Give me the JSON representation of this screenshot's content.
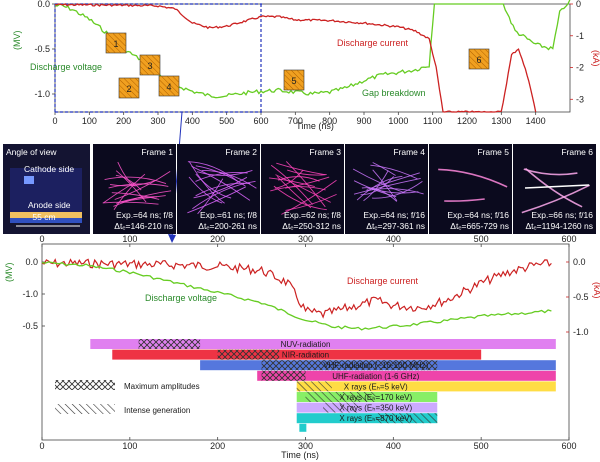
{
  "chart_data": [
    {
      "type": "line",
      "title": "",
      "xlabel": "Time (ns)",
      "ylabel_left": "(MV)",
      "ylabel_right": "(kA)",
      "xlim": [
        0,
        1500
      ],
      "ylim_left": [
        -1.2,
        0.0
      ],
      "ylim_right": [
        -3.4,
        0.0
      ],
      "x_ticks": [
        0,
        100,
        200,
        300,
        400,
        500,
        600,
        700,
        800,
        900,
        1000,
        1100,
        1200,
        1300,
        1400
      ],
      "y_ticks_left": [
        "0.0",
        "-0.5",
        "-1.0"
      ],
      "y_ticks_right": [
        "0",
        "-1",
        "-2",
        "-3"
      ],
      "series": [
        {
          "name": "Discharge voltage",
          "color": "#66cc22",
          "axis": "left",
          "x": [
            0,
            20,
            50,
            100,
            150,
            200,
            250,
            300,
            350,
            400,
            450,
            500,
            550,
            600,
            650,
            700,
            750,
            800,
            850,
            900,
            950,
            1000,
            1050,
            1090,
            1100,
            1105,
            1200,
            1300,
            1340,
            1400,
            1450,
            1470,
            1500
          ],
          "values": [
            -0.02,
            -0.02,
            -0.06,
            -0.17,
            -0.32,
            -0.5,
            -0.62,
            -0.78,
            -0.9,
            -0.97,
            -1.02,
            -1.02,
            -0.99,
            -0.97,
            -0.96,
            -0.98,
            -1.0,
            -0.98,
            -0.93,
            -0.85,
            -0.79,
            -0.76,
            -0.73,
            -0.68,
            -0.2,
            0.05,
            0.05,
            0.05,
            -0.3,
            -0.45,
            -0.5,
            -0.1,
            0.05
          ]
        },
        {
          "name": "Discharge current",
          "color": "#cc2222",
          "axis": "right",
          "x": [
            0,
            100,
            200,
            300,
            350,
            400,
            450,
            500,
            550,
            600,
            650,
            700,
            800,
            900,
            1000,
            1050,
            1090,
            1110,
            1130,
            1300,
            1330,
            1350,
            1380,
            1400
          ],
          "values": [
            -0.02,
            -0.03,
            -0.04,
            -0.06,
            -0.15,
            -0.6,
            -0.75,
            -0.7,
            -0.55,
            -0.4,
            -0.4,
            -0.5,
            -0.52,
            -0.6,
            -0.72,
            -0.85,
            -1.1,
            -2.0,
            -3.4,
            -3.4,
            -1.6,
            -1.4,
            -2.4,
            -3.4
          ]
        }
      ],
      "annotations": [
        "Discharge voltage",
        "Discharge current",
        "Gap breakdown"
      ],
      "markers": [
        "1",
        "2",
        "3",
        "4",
        "5",
        "6"
      ]
    },
    {
      "type": "line",
      "xlabel": "Time (ns)",
      "ylabel_left": "(MV)",
      "ylabel_right": "(kA)",
      "xlim": [
        0,
        600
      ],
      "x_ticks": [
        0,
        100,
        200,
        300,
        400,
        500,
        600
      ],
      "y_ticks_left": [
        "0.0",
        "-0.5",
        "-1.0"
      ],
      "y_ticks_right": [
        "0.0",
        "-0.5",
        "-1.0"
      ],
      "series": [
        {
          "name": "Discharge current",
          "color": "#cc2222",
          "axis": "right",
          "x": [
            0,
            50,
            100,
            150,
            200,
            250,
            280,
            300,
            320,
            350,
            380,
            400,
            430,
            460,
            500,
            530,
            560,
            580
          ],
          "values": [
            -0.02,
            -0.02,
            -0.03,
            -0.04,
            -0.06,
            -0.12,
            -0.3,
            -0.7,
            -0.75,
            -0.65,
            -0.55,
            -0.62,
            -0.65,
            -0.55,
            -0.3,
            -0.15,
            -0.05,
            -0.02
          ]
        },
        {
          "name": "Discharge voltage",
          "color": "#66cc22",
          "axis": "left",
          "x": [
            0,
            50,
            100,
            150,
            200,
            250,
            280,
            300,
            330,
            360,
            400,
            450,
            500,
            550,
            580
          ],
          "values": [
            -0.01,
            -0.05,
            -0.15,
            -0.3,
            -0.45,
            -0.6,
            -0.75,
            -0.85,
            -0.95,
            -0.98,
            -0.95,
            -0.88,
            -0.8,
            -0.75,
            -0.72
          ]
        }
      ],
      "annotations": [
        "Discharge current",
        "Discharge voltage"
      ],
      "radiation_bars": [
        {
          "label": "NUV-radiation",
          "start": 55,
          "end": 585,
          "color": "#e080f0",
          "hatch_start": 110,
          "hatch_end": 180
        },
        {
          "label": "NIR-radiation",
          "start": 80,
          "end": 500,
          "color": "#ee3344",
          "hatch_start": 200,
          "hatch_end": 270
        },
        {
          "label": "VHF-radiation (~10-100 MHz)",
          "start": 180,
          "end": 585,
          "color": "#5577dd",
          "hatch_start": 250,
          "hatch_end": 450
        },
        {
          "label": "UHF-radiation (1-6 GHz)",
          "start": 245,
          "end": 585,
          "color": "#ee44aa",
          "hatch_start": 250,
          "hatch_end": 300
        },
        {
          "label": "X rays (Eₕ=5 keV)",
          "start": 290,
          "end": 585,
          "color": "#ffdd44",
          "hatch_start": 290,
          "hatch_end": 330
        },
        {
          "label": "X rays (Eₕ=170 keV)",
          "start": 290,
          "end": 450,
          "color": "#88ee66",
          "hatch_start": 300,
          "hatch_end": 380
        },
        {
          "label": "X rays (Eₕ=350 keV)",
          "start": 290,
          "end": 450,
          "color": "#ccaaff",
          "hatch_start": 320,
          "hatch_end": 360
        },
        {
          "label": "X rays (Eₕ=870 keV)",
          "start": 290,
          "end": 450,
          "color": "#22cccc",
          "hatch_start": 380,
          "hatch_end": 450
        }
      ],
      "legend": [
        "Maximum amplitudes",
        "Intense generation"
      ]
    }
  ],
  "frames": {
    "view": {
      "title": "Angle of view",
      "cathode": "Cathode side",
      "anode": "Anode side",
      "scale": "55 cm"
    },
    "items": [
      {
        "title": "Frame 1",
        "exp": "Exp.=64 ns; f/8",
        "dt": "Δtₑ=146-210 ns"
      },
      {
        "title": "Frame 2",
        "exp": "Exp.=61 ns; f/8",
        "dt": "Δtₑ=200-261 ns"
      },
      {
        "title": "Frame 3",
        "exp": "Exp.=62 ns; f/8",
        "dt": "Δtₑ=250-312 ns"
      },
      {
        "title": "Frame 4",
        "exp": "Exp.=64 ns; f/16",
        "dt": "Δtₑ=297-361 ns"
      },
      {
        "title": "Frame 5",
        "exp": "Exp.=64 ns; f/16",
        "dt": "Δtₑ=665-729 ns"
      },
      {
        "title": "Frame 6",
        "exp": "Exp.=66 ns; f/16",
        "dt": "Δtₑ=1194-1260 ns"
      }
    ]
  },
  "colors": {
    "voltage": "#66cc22",
    "current": "#cc2222",
    "marker": "#f0a020"
  }
}
